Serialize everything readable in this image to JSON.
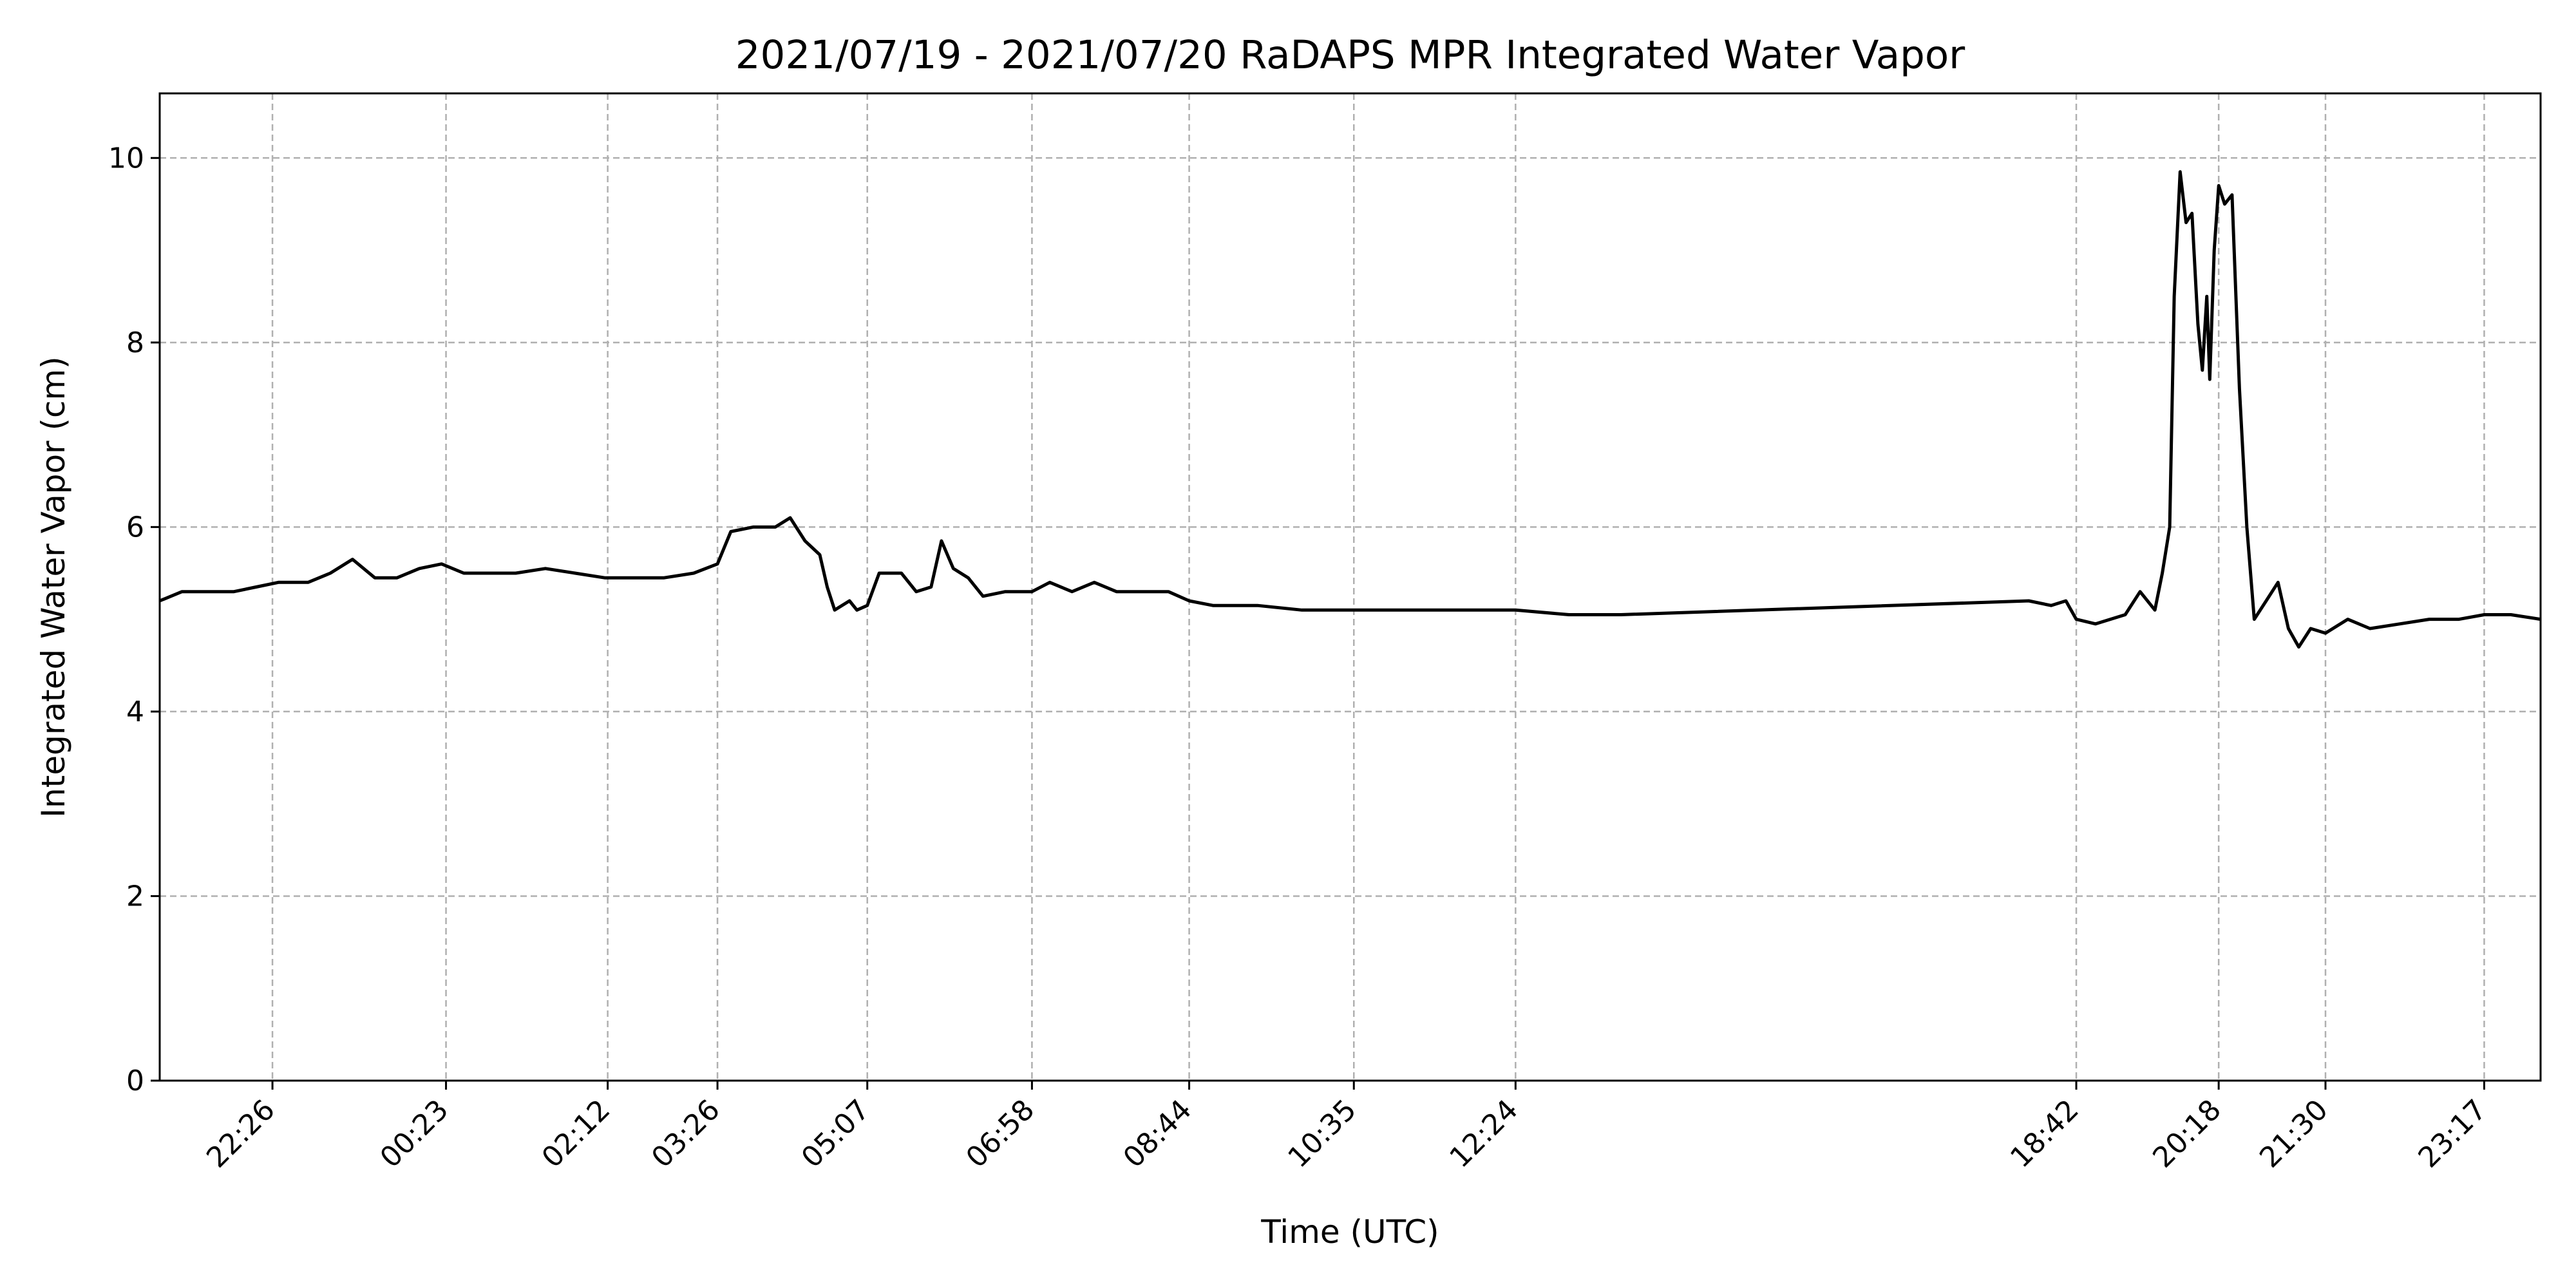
{
  "chart_data": {
    "type": "line",
    "title": "2021/07/19 - 2021/07/20 RaDAPS MPR Integrated Water Vapor",
    "xlabel": "Time (UTC)",
    "ylabel": "Integrated Water Vapor (cm)",
    "ylim": [
      0,
      10.7
    ],
    "xlim": [
      "2021-07-19 21:10",
      "2021-07-20 23:55"
    ],
    "grid": true,
    "line_color": "#000000",
    "grid_color": "#b0b0b0",
    "x_ticks": [
      {
        "label": "22:26",
        "time": "2021-07-19 22:26"
      },
      {
        "label": "00:23",
        "time": "2021-07-20 00:23"
      },
      {
        "label": "02:12",
        "time": "2021-07-20 02:12"
      },
      {
        "label": "03:26",
        "time": "2021-07-20 03:26"
      },
      {
        "label": "05:07",
        "time": "2021-07-20 05:07"
      },
      {
        "label": "06:58",
        "time": "2021-07-20 06:58"
      },
      {
        "label": "08:44",
        "time": "2021-07-20 08:44"
      },
      {
        "label": "10:35",
        "time": "2021-07-20 10:35"
      },
      {
        "label": "12:24",
        "time": "2021-07-20 12:24"
      },
      {
        "label": "18:42",
        "time": "2021-07-20 18:42"
      },
      {
        "label": "20:18",
        "time": "2021-07-20 20:18"
      },
      {
        "label": "21:30",
        "time": "2021-07-20 21:30"
      },
      {
        "label": "23:17",
        "time": "2021-07-20 23:17"
      }
    ],
    "y_ticks": [
      {
        "label": "0",
        "value": 0
      },
      {
        "label": "2",
        "value": 2
      },
      {
        "label": "4",
        "value": 4
      },
      {
        "label": "6",
        "value": 6
      },
      {
        "label": "8",
        "value": 8
      },
      {
        "label": "10",
        "value": 10
      }
    ],
    "series": [
      {
        "points": [
          [
            "2021-07-19 21:10",
            5.2
          ],
          [
            "2021-07-19 21:25",
            5.3
          ],
          [
            "2021-07-19 21:40",
            5.3
          ],
          [
            "2021-07-19 22:00",
            5.3
          ],
          [
            "2021-07-19 22:15",
            5.35
          ],
          [
            "2021-07-19 22:30",
            5.4
          ],
          [
            "2021-07-19 22:50",
            5.4
          ],
          [
            "2021-07-19 23:05",
            5.5
          ],
          [
            "2021-07-19 23:20",
            5.65
          ],
          [
            "2021-07-19 23:35",
            5.45
          ],
          [
            "2021-07-19 23:50",
            5.45
          ],
          [
            "2021-07-20 00:05",
            5.55
          ],
          [
            "2021-07-20 00:20",
            5.6
          ],
          [
            "2021-07-20 00:35",
            5.5
          ],
          [
            "2021-07-20 00:50",
            5.5
          ],
          [
            "2021-07-20 01:10",
            5.5
          ],
          [
            "2021-07-20 01:30",
            5.55
          ],
          [
            "2021-07-20 01:50",
            5.5
          ],
          [
            "2021-07-20 02:10",
            5.45
          ],
          [
            "2021-07-20 02:30",
            5.45
          ],
          [
            "2021-07-20 02:50",
            5.45
          ],
          [
            "2021-07-20 03:10",
            5.5
          ],
          [
            "2021-07-20 03:26",
            5.6
          ],
          [
            "2021-07-20 03:35",
            5.95
          ],
          [
            "2021-07-20 03:50",
            6.0
          ],
          [
            "2021-07-20 04:05",
            6.0
          ],
          [
            "2021-07-20 04:15",
            6.1
          ],
          [
            "2021-07-20 04:25",
            5.85
          ],
          [
            "2021-07-20 04:35",
            5.7
          ],
          [
            "2021-07-20 04:40",
            5.35
          ],
          [
            "2021-07-20 04:45",
            5.1
          ],
          [
            "2021-07-20 04:55",
            5.2
          ],
          [
            "2021-07-20 05:00",
            5.1
          ],
          [
            "2021-07-20 05:07",
            5.15
          ],
          [
            "2021-07-20 05:15",
            5.5
          ],
          [
            "2021-07-20 05:30",
            5.5
          ],
          [
            "2021-07-20 05:40",
            5.3
          ],
          [
            "2021-07-20 05:50",
            5.35
          ],
          [
            "2021-07-20 05:57",
            5.85
          ],
          [
            "2021-07-20 06:05",
            5.55
          ],
          [
            "2021-07-20 06:15",
            5.45
          ],
          [
            "2021-07-20 06:25",
            5.25
          ],
          [
            "2021-07-20 06:40",
            5.3
          ],
          [
            "2021-07-20 06:58",
            5.3
          ],
          [
            "2021-07-20 07:10",
            5.4
          ],
          [
            "2021-07-20 07:25",
            5.3
          ],
          [
            "2021-07-20 07:40",
            5.4
          ],
          [
            "2021-07-20 07:55",
            5.3
          ],
          [
            "2021-07-20 08:10",
            5.3
          ],
          [
            "2021-07-20 08:30",
            5.3
          ],
          [
            "2021-07-20 08:44",
            5.2
          ],
          [
            "2021-07-20 09:00",
            5.15
          ],
          [
            "2021-07-20 09:30",
            5.15
          ],
          [
            "2021-07-20 10:00",
            5.1
          ],
          [
            "2021-07-20 10:35",
            5.1
          ],
          [
            "2021-07-20 11:10",
            5.1
          ],
          [
            "2021-07-20 11:45",
            5.1
          ],
          [
            "2021-07-20 12:24",
            5.1
          ],
          [
            "2021-07-20 13:00",
            5.05
          ],
          [
            "2021-07-20 13:35",
            5.05
          ],
          [
            "2021-07-20 18:10",
            5.2
          ],
          [
            "2021-07-20 18:25",
            5.15
          ],
          [
            "2021-07-20 18:35",
            5.2
          ],
          [
            "2021-07-20 18:42",
            5.0
          ],
          [
            "2021-07-20 18:55",
            4.95
          ],
          [
            "2021-07-20 19:05",
            5.0
          ],
          [
            "2021-07-20 19:15",
            5.05
          ],
          [
            "2021-07-20 19:25",
            5.3
          ],
          [
            "2021-07-20 19:35",
            5.1
          ],
          [
            "2021-07-20 19:40",
            5.5
          ],
          [
            "2021-07-20 19:45",
            6.0
          ],
          [
            "2021-07-20 19:48",
            8.5
          ],
          [
            "2021-07-20 19:52",
            9.85
          ],
          [
            "2021-07-20 19:56",
            9.3
          ],
          [
            "2021-07-20 20:00",
            9.4
          ],
          [
            "2021-07-20 20:04",
            8.2
          ],
          [
            "2021-07-20 20:07",
            7.7
          ],
          [
            "2021-07-20 20:10",
            8.5
          ],
          [
            "2021-07-20 20:12",
            7.6
          ],
          [
            "2021-07-20 20:15",
            9.0
          ],
          [
            "2021-07-20 20:18",
            9.7
          ],
          [
            "2021-07-20 20:22",
            9.5
          ],
          [
            "2021-07-20 20:27",
            9.6
          ],
          [
            "2021-07-20 20:32",
            7.5
          ],
          [
            "2021-07-20 20:37",
            6.0
          ],
          [
            "2021-07-20 20:42",
            5.0
          ],
          [
            "2021-07-20 20:50",
            5.2
          ],
          [
            "2021-07-20 20:58",
            5.4
          ],
          [
            "2021-07-20 21:05",
            4.9
          ],
          [
            "2021-07-20 21:12",
            4.7
          ],
          [
            "2021-07-20 21:20",
            4.9
          ],
          [
            "2021-07-20 21:30",
            4.85
          ],
          [
            "2021-07-20 21:45",
            5.0
          ],
          [
            "2021-07-20 22:00",
            4.9
          ],
          [
            "2021-07-20 22:20",
            4.95
          ],
          [
            "2021-07-20 22:40",
            5.0
          ],
          [
            "2021-07-20 23:00",
            5.0
          ],
          [
            "2021-07-20 23:17",
            5.05
          ],
          [
            "2021-07-20 23:35",
            5.05
          ],
          [
            "2021-07-20 23:55",
            5.0
          ]
        ]
      }
    ]
  }
}
